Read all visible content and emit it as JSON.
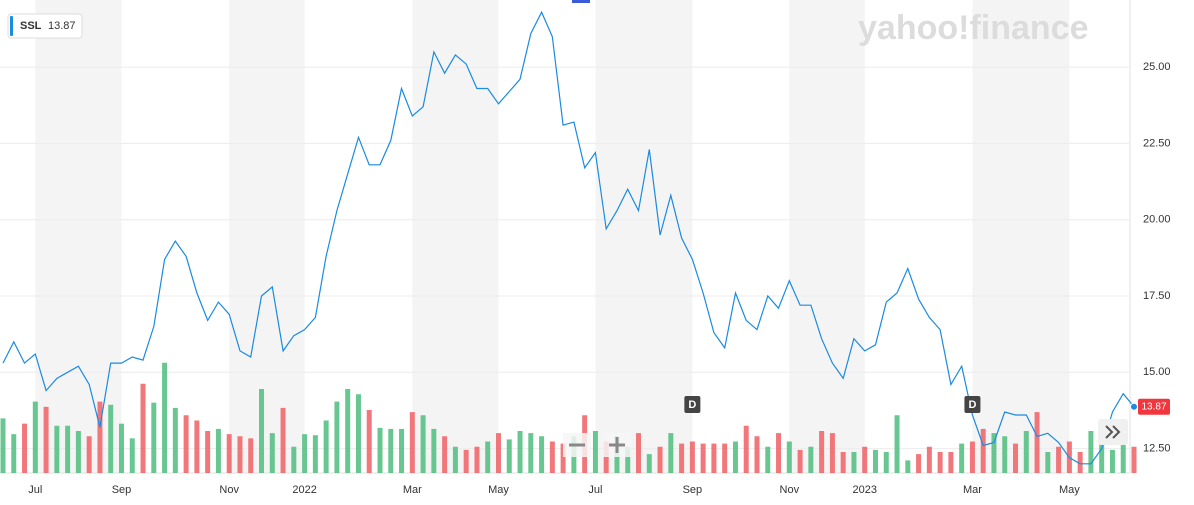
{
  "chart_data": {
    "type": "line",
    "ticker_label": "SSL",
    "watermark": "yahoo!finance",
    "categories": [
      null,
      null,
      null,
      "Jul",
      null,
      null,
      null,
      null,
      null,
      null,
      null,
      "Sep",
      null,
      null,
      null,
      null,
      null,
      null,
      null,
      null,
      null,
      "Nov",
      null,
      null,
      null,
      null,
      null,
      null,
      "2022",
      null,
      null,
      null,
      null,
      null,
      null,
      null,
      null,
      null,
      "Mar",
      null,
      null,
      null,
      null,
      null,
      null,
      null,
      "May",
      null,
      null,
      null,
      null,
      null,
      null,
      null,
      null,
      "Jul",
      null,
      null,
      null,
      null,
      null,
      null,
      null,
      null,
      "Sep",
      null,
      null,
      null,
      null,
      null,
      null,
      null,
      null,
      "Nov",
      null,
      null,
      null,
      null,
      null,
      null,
      "2023",
      null,
      null,
      null,
      null,
      null,
      null,
      null,
      null,
      null,
      "Mar",
      null,
      null,
      null,
      null,
      null,
      null,
      null,
      null,
      "May",
      null,
      null,
      null,
      null,
      null,
      null
    ],
    "series": [
      {
        "name": "SSL",
        "color": "#1a8be0",
        "values": [
          15.3,
          16.0,
          15.3,
          15.6,
          14.4,
          14.8,
          15.0,
          15.2,
          14.6,
          13.2,
          15.3,
          15.3,
          15.5,
          15.4,
          16.5,
          18.7,
          19.3,
          18.8,
          17.6,
          16.7,
          17.3,
          16.9,
          15.7,
          15.5,
          17.5,
          17.8,
          15.7,
          16.2,
          16.4,
          16.8,
          18.8,
          20.3,
          21.5,
          22.7,
          21.8,
          21.8,
          22.6,
          24.3,
          23.4,
          23.7,
          25.5,
          24.8,
          25.4,
          25.1,
          24.3,
          24.3,
          23.8,
          24.2,
          24.6,
          26.1,
          26.8,
          26.0,
          23.1,
          23.2,
          21.7,
          22.2,
          19.7,
          20.3,
          21.0,
          20.3,
          22.3,
          19.5,
          20.8,
          19.4,
          18.7,
          17.6,
          16.3,
          15.8,
          17.6,
          16.7,
          16.4,
          17.5,
          17.1,
          18.0,
          17.2,
          17.2,
          16.1,
          15.3,
          14.8,
          16.1,
          15.7,
          15.9,
          17.3,
          17.6,
          18.4,
          17.4,
          16.8,
          16.4,
          14.6,
          15.2,
          13.6,
          12.6,
          12.7,
          13.7,
          13.6,
          13.6,
          12.9,
          13.0,
          12.7,
          12.2,
          12.0,
          12.0,
          12.5,
          13.7,
          14.3,
          13.87
        ]
      },
      {
        "name": "Volume",
        "axis": "y2",
        "up_color": "#4dbd7e",
        "down_color": "#ef5f64",
        "values": [
          52,
          37,
          47,
          68,
          63,
          45,
          45,
          40,
          35,
          68,
          65,
          47,
          33,
          85,
          67,
          105,
          62,
          55,
          50,
          40,
          42,
          37,
          35,
          33,
          80,
          38,
          62,
          25,
          37,
          36,
          50,
          68,
          80,
          75,
          60,
          43,
          42,
          42,
          58,
          55,
          42,
          35,
          25,
          22,
          25,
          30,
          38,
          32,
          40,
          38,
          35,
          30,
          28,
          35,
          55,
          40,
          30,
          35,
          25,
          38,
          18,
          25,
          38,
          28,
          30,
          28,
          28,
          28,
          30,
          45,
          35,
          25,
          38,
          30,
          22,
          25,
          40,
          38,
          20,
          20,
          25,
          22,
          20,
          55,
          12,
          18,
          25,
          20,
          20,
          28,
          30,
          42,
          38,
          35,
          28,
          40,
          58,
          20,
          25,
          30,
          20,
          40,
          30,
          22,
          28,
          25
        ]
      }
    ],
    "ylim": [
      11.7,
      27.2
    ],
    "yticks": [
      {
        "value": 12.5,
        "label": "12.50"
      },
      {
        "value": 15,
        "label": "15.00"
      },
      {
        "value": 17.5,
        "label": "17.50"
      },
      {
        "value": 20,
        "label": "20.00"
      },
      {
        "value": 22.5,
        "label": "22.50"
      },
      {
        "value": 25,
        "label": "25.00"
      }
    ],
    "y2lim": [
      0,
      100
    ],
    "grid": true,
    "annotations": [
      {
        "text": "D",
        "index": 64
      },
      {
        "text": "D",
        "index": 90
      }
    ]
  }
}
